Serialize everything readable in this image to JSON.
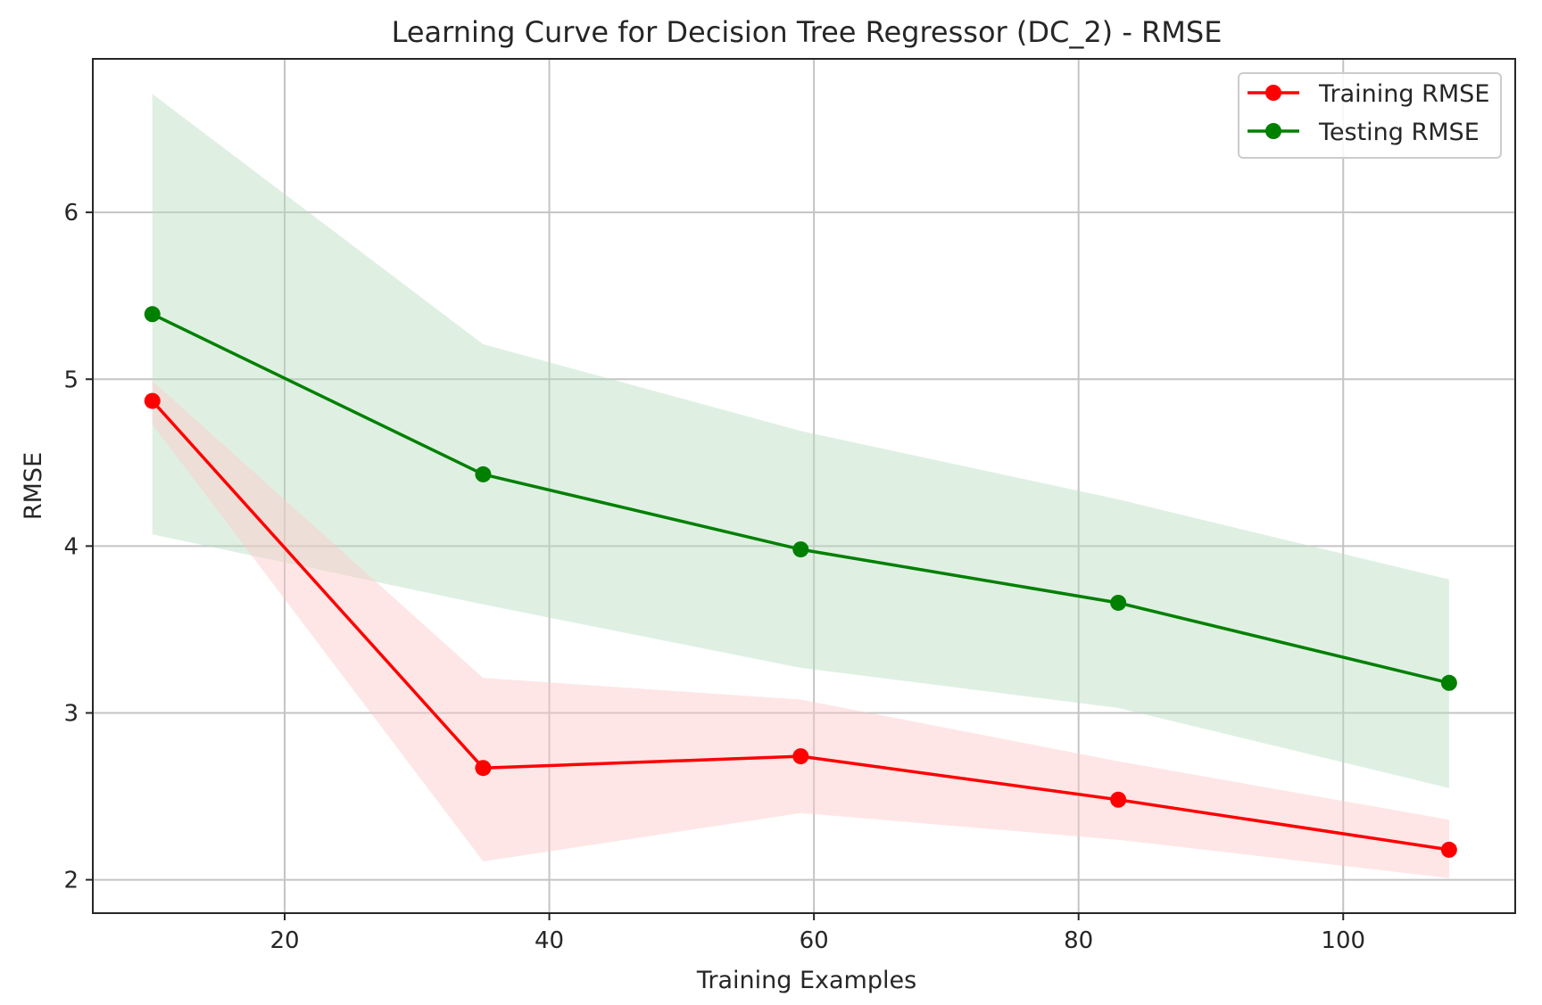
{
  "chart_data": {
    "type": "line",
    "title": "Learning Curve for Decision Tree Regressor (DC_2) - RMSE",
    "xlabel": "Training Examples",
    "ylabel": "RMSE",
    "xlim": [
      5.5,
      113
    ],
    "ylim": [
      1.8,
      6.92
    ],
    "xticks": [
      20,
      40,
      60,
      80,
      100
    ],
    "yticks": [
      2,
      3,
      4,
      5,
      6
    ],
    "grid": true,
    "legend_position": "top-right",
    "x": [
      10,
      35,
      59,
      83,
      108
    ],
    "series": [
      {
        "name": "Training RMSE",
        "color": "#ff0000",
        "band_color": "#ffc8c8",
        "values": [
          4.87,
          2.67,
          2.74,
          2.48,
          2.18
        ],
        "band_upper": [
          4.99,
          3.21,
          3.08,
          2.71,
          2.36
        ],
        "band_lower": [
          4.73,
          2.11,
          2.4,
          2.24,
          2.01
        ]
      },
      {
        "name": "Testing RMSE",
        "color": "#008000",
        "band_color": "#b9ddc0",
        "values": [
          5.39,
          4.43,
          3.98,
          3.66,
          3.18
        ],
        "band_upper": [
          6.71,
          5.21,
          4.69,
          4.28,
          3.8
        ],
        "band_lower": [
          4.07,
          3.65,
          3.27,
          3.03,
          2.55
        ]
      }
    ]
  }
}
